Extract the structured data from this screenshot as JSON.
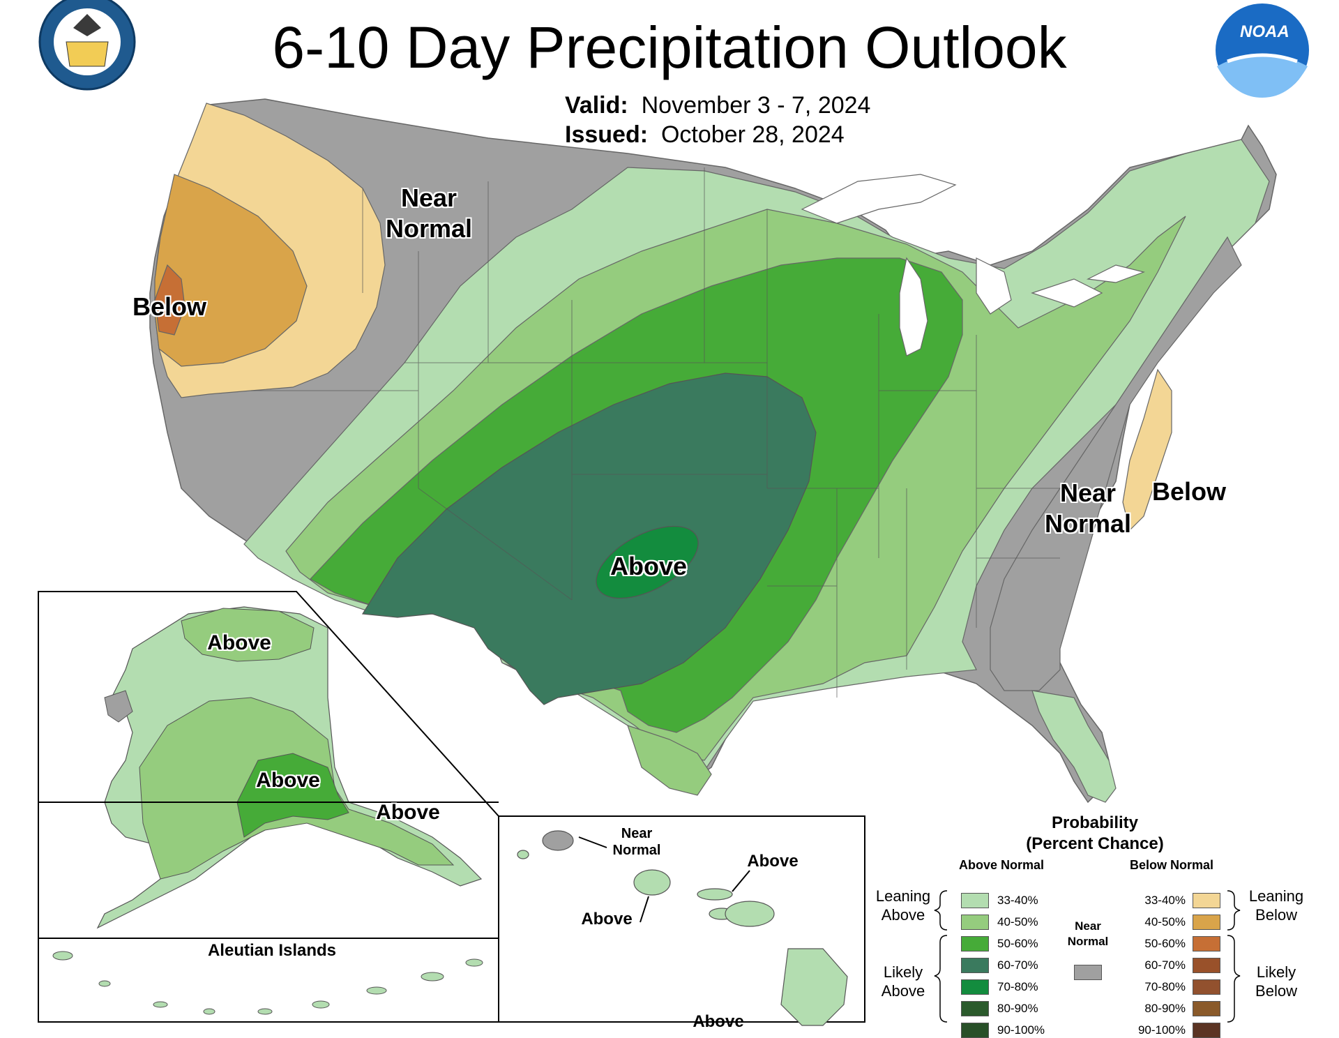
{
  "header": {
    "title": "6-10 Day Precipitation Outlook",
    "valid_label": "Valid:",
    "valid_value": "November 3 - 7, 2024",
    "issued_label": "Issued:",
    "issued_value": "October 28, 2024"
  },
  "logos": {
    "commerce_seal": "DEPARTMENT OF COMMERCE · UNITED STATES OF AMERICA",
    "noaa": "NOAA"
  },
  "map_labels": {
    "conus_near_normal_west": "Near Normal",
    "conus_below_west": "Below",
    "conus_above_central": "Above",
    "conus_near_normal_east": "Near Normal",
    "conus_below_east": "Below",
    "alaska_above_north": "Above",
    "alaska_above_south": "Above",
    "alaska_above_panhandle": "Above",
    "aleutian_title": "Aleutian Islands",
    "hawaii_near_normal": "Near Normal",
    "hawaii_above_oahu": "Above",
    "hawaii_above_maui": "Above",
    "hawaii_above_big_island": "Above"
  },
  "legend": {
    "title_line1": "Probability",
    "title_line2": "(Percent Chance)",
    "above_header": "Above Normal",
    "below_header": "Below Normal",
    "near_normal": "Near Normal",
    "leaning_above": "Leaning Above",
    "likely_above": "Likely Above",
    "leaning_below": "Leaning Below",
    "likely_below": "Likely Below",
    "above_rows": [
      {
        "label": "33-40%",
        "color": "#b3ddb0"
      },
      {
        "label": "40-50%",
        "color": "#95cc7e"
      },
      {
        "label": "50-60%",
        "color": "#46ab38"
      },
      {
        "label": "60-70%",
        "color": "#3a7a5e"
      },
      {
        "label": "70-80%",
        "color": "#138c3e"
      },
      {
        "label": "80-90%",
        "color": "#2b5a2c"
      },
      {
        "label": "90-100%",
        "color": "#285028"
      }
    ],
    "below_rows": [
      {
        "label": "33-40%",
        "color": "#f3d695"
      },
      {
        "label": "40-50%",
        "color": "#d9a44a"
      },
      {
        "label": "50-60%",
        "color": "#c66f35"
      },
      {
        "label": "60-70%",
        "color": "#99512a"
      },
      {
        "label": "70-80%",
        "color": "#92512e"
      },
      {
        "label": "80-90%",
        "color": "#8a5a2a"
      },
      {
        "label": "90-100%",
        "color": "#5b3423"
      }
    ],
    "near_normal_color": "#a0a0a0"
  }
}
